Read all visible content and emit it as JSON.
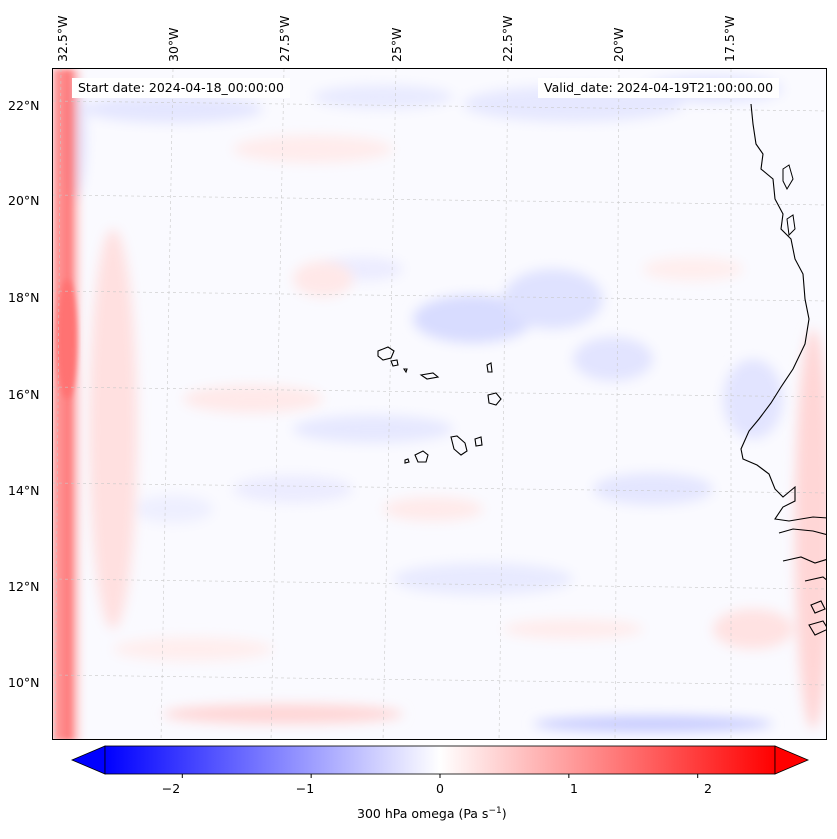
{
  "map": {
    "start_date": "Start date: 2024-04-18_00:00:00",
    "valid_date": "Valid_date: 2024-04-19T21:00:00.00",
    "longitude_labels": [
      "32.5°W",
      "30°W",
      "27.5°W",
      "25°W",
      "22.5°W",
      "20°W",
      "17.5°W"
    ],
    "latitude_labels": [
      "22°N",
      "20°N",
      "18°N",
      "16°N",
      "14°N",
      "12°N",
      "10°N"
    ]
  },
  "colorbar": {
    "label_prefix": "300 hPa omega (Pa s",
    "label_exponent": "−1",
    "label_suffix": ")",
    "ticks": [
      "−2",
      "−1",
      "0",
      "1",
      "2"
    ],
    "tick_values": [
      -2,
      -1,
      0,
      1,
      2
    ],
    "range": [
      -2.6,
      2.6
    ],
    "low_color": "#0000ff",
    "mid_color": "#ffffff",
    "high_color": "#ff0000"
  }
}
